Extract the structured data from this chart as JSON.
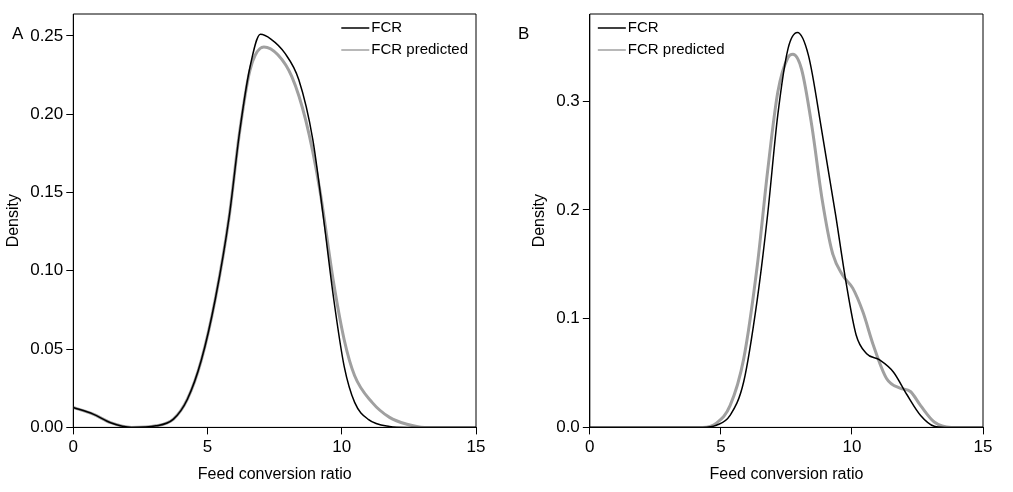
{
  "chart_data": [
    {
      "type": "line",
      "xlabel": "Feed conversion ratio",
      "ylabel": "Density",
      "annotations": [
        "A"
      ],
      "legend": "top right",
      "grid": false,
      "xlim": [
        0,
        15
      ],
      "xticks": [
        0,
        5,
        10,
        15
      ],
      "ylim": [
        0,
        0.264
      ],
      "yticks": [
        {
          "value": 0,
          "label": "0.00"
        },
        {
          "value": 0.05,
          "label": "0.05"
        },
        {
          "value": 0.1,
          "label": "0.10"
        },
        {
          "value": 0.15,
          "label": "0.15"
        },
        {
          "value": 0.2,
          "label": "0.20"
        },
        {
          "value": 0.25,
          "label": "0.25"
        }
      ],
      "series": [
        {
          "name": "FCR",
          "color": "#000000",
          "x": [
            0,
            0.74,
            1.39,
            2.17,
            3.08,
            3.73,
            4.25,
            4.77,
            5.29,
            5.81,
            6.19,
            6.58,
            6.97,
            7.36,
            7.88,
            8.4,
            8.92,
            9.31,
            9.7,
            10.09,
            10.48,
            11,
            11.78,
            12.43,
            15
          ],
          "values": [
            0.0127,
            0.0085,
            0.003,
            0,
            0.001,
            0.0053,
            0.018,
            0.043,
            0.082,
            0.135,
            0.188,
            0.23,
            0.251,
            0.248,
            0.239,
            0.222,
            0.184,
            0.135,
            0.082,
            0.039,
            0.016,
            0.005,
            0.0006,
            0,
            0
          ]
        },
        {
          "name": "FCR predicted",
          "color": "#a0a0a0",
          "x": [
            0,
            0.74,
            1.39,
            2.17,
            3.08,
            3.73,
            4.25,
            4.77,
            5.29,
            5.81,
            6.19,
            6.58,
            7.1,
            7.62,
            8.14,
            8.66,
            9.18,
            9.7,
            10.09,
            10.48,
            11.13,
            11.78,
            12.43,
            13.08,
            15
          ],
          "values": [
            0.0127,
            0.0085,
            0.003,
            0,
            0.001,
            0.0053,
            0.018,
            0.043,
            0.082,
            0.135,
            0.188,
            0.228,
            0.243,
            0.238,
            0.224,
            0.196,
            0.152,
            0.092,
            0.056,
            0.033,
            0.016,
            0.0064,
            0.002,
            0,
            0
          ]
        }
      ]
    },
    {
      "type": "line",
      "xlabel": "Feed conversion ratio",
      "ylabel": "Density",
      "annotations": [
        "B"
      ],
      "legend": "top left",
      "grid": false,
      "xlim": [
        0,
        15
      ],
      "xticks": [
        0,
        5,
        10,
        15
      ],
      "ylim": [
        0,
        0.38
      ],
      "yticks": [
        {
          "value": 0,
          "label": "0.0"
        },
        {
          "value": 0.1,
          "label": "0.1"
        },
        {
          "value": 0.2,
          "label": "0.2"
        },
        {
          "value": 0.3,
          "label": "0.3"
        }
      ],
      "series": [
        {
          "name": "FCR",
          "color": "#000000",
          "x": [
            0,
            4.31,
            4.83,
            5.35,
            5.87,
            6.39,
            6.78,
            7.17,
            7.56,
            7.92,
            8.34,
            8.86,
            9.38,
            9.77,
            10.16,
            10.55,
            11.06,
            11.58,
            12.1,
            12.62,
            13.14,
            13.53,
            15
          ],
          "values": [
            0,
            0,
            0.002,
            0.011,
            0.042,
            0.118,
            0.195,
            0.287,
            0.348,
            0.363,
            0.342,
            0.271,
            0.195,
            0.134,
            0.085,
            0.068,
            0.062,
            0.051,
            0.03,
            0.011,
            0.001,
            0,
            0
          ]
        },
        {
          "name": "FCR predicted",
          "color": "#a0a0a0",
          "x": [
            0,
            4.31,
            4.83,
            5.35,
            5.87,
            6.39,
            6.78,
            7.17,
            7.56,
            7.75,
            8.08,
            8.47,
            8.86,
            9.25,
            9.64,
            10.03,
            10.42,
            10.81,
            11.32,
            11.84,
            12.23,
            12.62,
            13.14,
            13.79,
            15
          ],
          "values": [
            0,
            0,
            0.004,
            0.02,
            0.063,
            0.149,
            0.235,
            0.308,
            0.34,
            0.343,
            0.329,
            0.277,
            0.21,
            0.161,
            0.14,
            0.128,
            0.106,
            0.076,
            0.045,
            0.036,
            0.033,
            0.02,
            0.005,
            0,
            0
          ]
        }
      ]
    }
  ]
}
